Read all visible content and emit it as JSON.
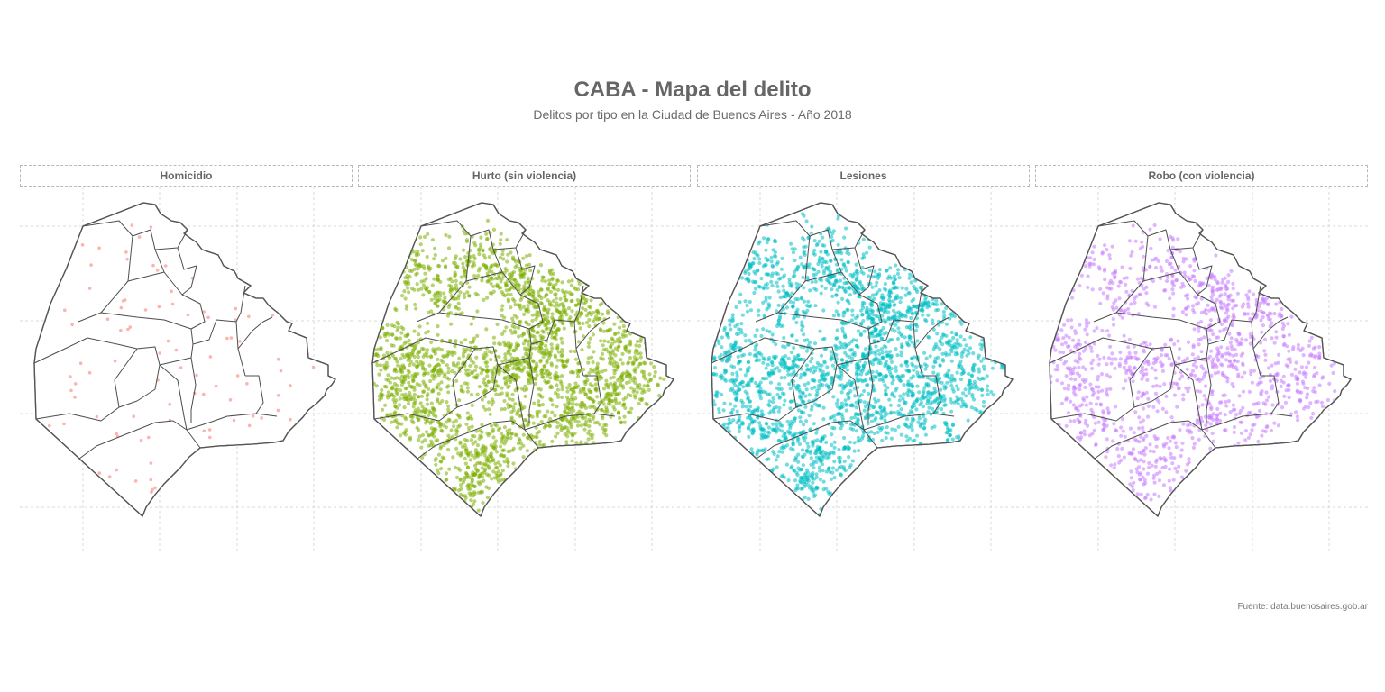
{
  "header": {
    "title": "CABA - Mapa del delito",
    "subtitle": "Delitos por tipo en la Ciudad de Buenos Aires - Año 2018"
  },
  "caption": "Fuente: data.buenosaires.gob.ar",
  "map": {
    "region": "Ciudad Autónoma de Buenos Aires",
    "boundaries": "comunas",
    "grid": "dashed"
  },
  "facets": [
    {
      "label": "Homicidio",
      "color": "#F8766D",
      "density": "sparse",
      "point_count": 140
    },
    {
      "label": "Hurto (sin violencia)",
      "color": "#7CAE00",
      "density": "very-high",
      "point_count": 2600
    },
    {
      "label": "Lesiones",
      "color": "#00BFC4",
      "density": "very-high",
      "point_count": 2600
    },
    {
      "label": "Robo (con violencia)",
      "color": "#C77CFF",
      "density": "high",
      "point_count": 1300
    }
  ]
}
